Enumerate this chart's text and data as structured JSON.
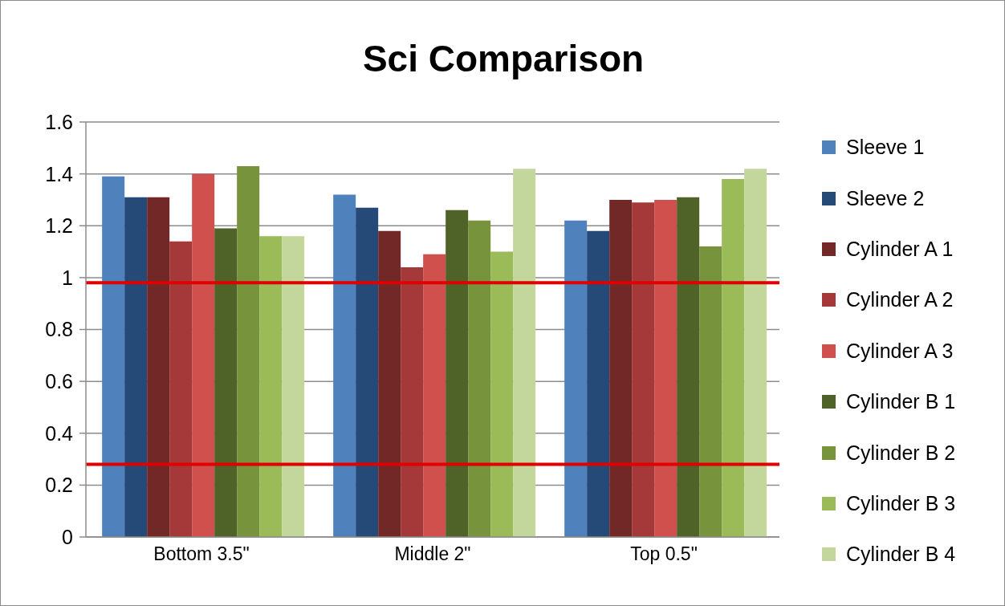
{
  "chart_data": {
    "type": "bar",
    "title": "Sci Comparison",
    "categories": [
      "Bottom 3.5\"",
      "Middle 2\"",
      "Top 0.5\""
    ],
    "series": [
      {
        "name": "Sleeve 1",
        "color": "#4f81bd",
        "values": [
          1.39,
          1.32,
          1.22
        ]
      },
      {
        "name": "Sleeve 2",
        "color": "#254a78",
        "values": [
          1.31,
          1.27,
          1.18
        ]
      },
      {
        "name": "Cylinder A 1",
        "color": "#722826",
        "values": [
          1.31,
          1.18,
          1.3
        ]
      },
      {
        "name": "Cylinder A 2",
        "color": "#a5393a",
        "values": [
          1.14,
          1.04,
          1.29
        ]
      },
      {
        "name": "Cylinder A 3",
        "color": "#d0504e",
        "values": [
          1.4,
          1.09,
          1.3
        ]
      },
      {
        "name": "Cylinder B 1",
        "color": "#4f6228",
        "values": [
          1.19,
          1.26,
          1.31
        ]
      },
      {
        "name": "Cylinder B 2",
        "color": "#77933c",
        "values": [
          1.43,
          1.22,
          1.12
        ]
      },
      {
        "name": "Cylinder B 3",
        "color": "#9bbb59",
        "values": [
          1.16,
          1.1,
          1.38
        ]
      },
      {
        "name": "Cylinder B 4",
        "color": "#c3d69b",
        "values": [
          1.16,
          1.42,
          1.42
        ]
      }
    ],
    "ylim": [
      0,
      1.6
    ],
    "yticks": [
      0,
      0.2,
      0.4,
      0.6,
      0.8,
      1,
      1.2,
      1.4,
      1.6
    ],
    "grid": "y",
    "legend": "right",
    "ref_lines": [
      {
        "axis": "y",
        "value": 0.98,
        "color": "#e00000"
      },
      {
        "axis": "y",
        "value": 0.28,
        "color": "#e00000"
      }
    ]
  }
}
